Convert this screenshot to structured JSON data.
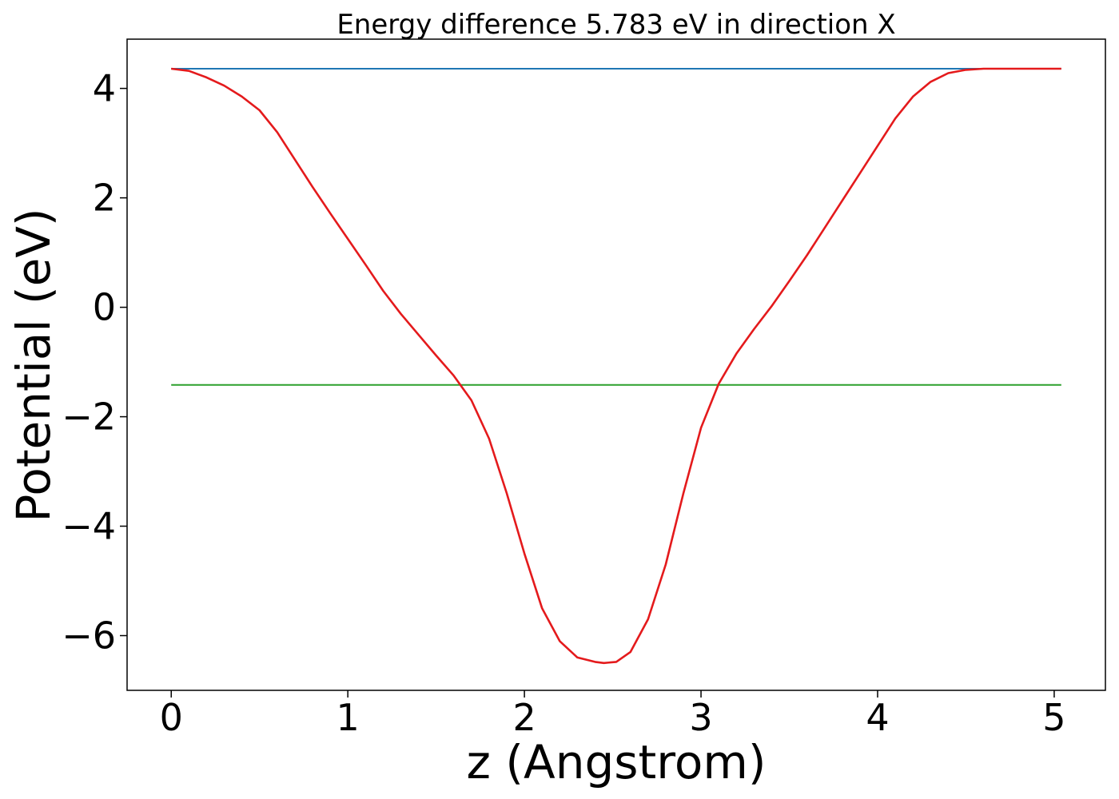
{
  "chart_data": {
    "type": "line",
    "title": "Energy difference 5.783 eV in direction X",
    "xlabel": "z (Angstrom)",
    "ylabel": "Potential (eV)",
    "xlim": [
      -0.25,
      5.29
    ],
    "ylim": [
      -7.0,
      4.9
    ],
    "x_ticks": [
      0,
      1,
      2,
      3,
      4,
      5
    ],
    "x_tick_labels": [
      "0",
      "1",
      "2",
      "3",
      "4",
      "5"
    ],
    "y_ticks": [
      -6,
      -4,
      -2,
      0,
      2,
      4
    ],
    "y_tick_labels": [
      "−6",
      "−4",
      "−2",
      "0",
      "2",
      "4"
    ],
    "grid": false,
    "series": [
      {
        "color": "#1f77b4",
        "x": [
          0,
          5.04
        ],
        "y": [
          4.36,
          4.36
        ]
      },
      {
        "color": "#2ca02c",
        "x": [
          0,
          5.04
        ],
        "y": [
          -1.42,
          -1.42
        ]
      },
      {
        "color": "#e41a1c",
        "x": [
          0,
          0.1,
          0.2,
          0.3,
          0.4,
          0.5,
          0.6,
          0.7,
          0.8,
          0.9,
          1.0,
          1.1,
          1.2,
          1.3,
          1.4,
          1.5,
          1.6,
          1.7,
          1.8,
          1.9,
          2.0,
          2.1,
          2.2,
          2.3,
          2.4,
          2.45,
          2.52,
          2.6,
          2.7,
          2.8,
          2.9,
          3.0,
          3.1,
          3.2,
          3.3,
          3.4,
          3.5,
          3.6,
          3.7,
          3.8,
          3.9,
          4.0,
          4.1,
          4.2,
          4.3,
          4.4,
          4.5,
          4.6,
          4.7,
          4.8,
          4.9,
          5.0,
          5.04
        ],
        "y": [
          4.36,
          4.32,
          4.2,
          4.05,
          3.85,
          3.6,
          3.2,
          2.7,
          2.2,
          1.72,
          1.25,
          0.78,
          0.3,
          -0.12,
          -0.5,
          -0.88,
          -1.25,
          -1.7,
          -2.4,
          -3.4,
          -4.5,
          -5.5,
          -6.1,
          -6.4,
          -6.48,
          -6.5,
          -6.48,
          -6.3,
          -5.7,
          -4.7,
          -3.4,
          -2.2,
          -1.4,
          -0.85,
          -0.4,
          0.02,
          0.48,
          0.95,
          1.45,
          1.95,
          2.45,
          2.95,
          3.45,
          3.85,
          4.12,
          4.28,
          4.34,
          4.36,
          4.36,
          4.36,
          4.36,
          4.36,
          4.36
        ]
      }
    ]
  }
}
